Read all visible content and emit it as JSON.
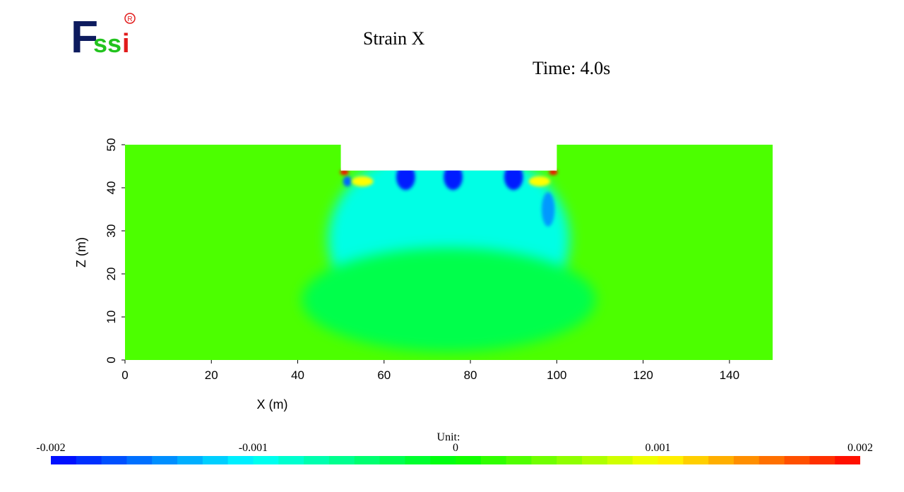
{
  "logo": {
    "text_F": "F",
    "text_s1": "s",
    "text_s2": "s",
    "text_i": "i",
    "registered": "R",
    "colors": {
      "F": "#0d1b5e",
      "s1": "#22c31e",
      "s2": "#22c31e",
      "i": "#e11b1b",
      "registered": "#e11b1b"
    }
  },
  "header": {
    "time_label": "Time: 4.0s"
  },
  "chart_data": {
    "type": "heatmap",
    "title": "Strain X",
    "xlabel": "X (m)",
    "ylabel": "Z (m)",
    "xlim": [
      0,
      150
    ],
    "ylim": [
      0,
      50
    ],
    "xticks": [
      0,
      20,
      40,
      60,
      80,
      100,
      120,
      140
    ],
    "yticks": [
      0,
      10,
      20,
      30,
      40,
      50
    ],
    "domain": {
      "outline": [
        [
          0,
          0
        ],
        [
          150,
          0
        ],
        [
          150,
          50
        ],
        [
          100,
          50
        ],
        [
          100,
          44
        ],
        [
          50,
          44
        ],
        [
          50,
          50
        ],
        [
          0,
          50
        ]
      ],
      "excavation": {
        "x": [
          50,
          100
        ],
        "z_bottom": 44
      }
    },
    "field": {
      "background_value": 0.0003,
      "features": [
        {
          "x": 75,
          "z": 28,
          "rx": 28,
          "rz": 22,
          "value": -0.0009
        },
        {
          "x": 75,
          "z": 14,
          "rx": 34,
          "rz": 12,
          "value": -0.0003
        },
        {
          "x": 65,
          "z": 42.5,
          "rx": 2.2,
          "rz": 3,
          "value": -0.0019
        },
        {
          "x": 76,
          "z": 42.5,
          "rx": 2.2,
          "rz": 3,
          "value": -0.0019
        },
        {
          "x": 90,
          "z": 42.5,
          "rx": 2.2,
          "rz": 3,
          "value": -0.0019
        },
        {
          "x": 98,
          "z": 35,
          "rx": 1.5,
          "rz": 4,
          "value": -0.0014
        },
        {
          "x": 51.5,
          "z": 41.5,
          "rx": 1,
          "rz": 1.2,
          "value": -0.0016
        },
        {
          "x": 55,
          "z": 41.5,
          "rx": 2.5,
          "rz": 1.2,
          "value": 0.001
        },
        {
          "x": 96,
          "z": 41.5,
          "rx": 2.5,
          "rz": 1.2,
          "value": 0.001
        },
        {
          "x": 50.8,
          "z": 43.6,
          "rx": 1,
          "rz": 0.6,
          "value": 0.002
        },
        {
          "x": 99.2,
          "z": 43.6,
          "rx": 1,
          "rz": 0.6,
          "value": 0.002
        }
      ]
    },
    "colorbar": {
      "unit_label": "Unit:",
      "min": -0.002,
      "max": 0.002,
      "tick_values": [
        -0.002,
        -0.001,
        0,
        0.001,
        0.002
      ],
      "tick_labels": [
        "-0.002",
        "-0.001",
        "0",
        "0.001",
        "0.002"
      ],
      "colors": [
        "#0000ff",
        "#00ffff",
        "#00ff00",
        "#ffff00",
        "#ff0000"
      ],
      "segments": 32
    }
  }
}
